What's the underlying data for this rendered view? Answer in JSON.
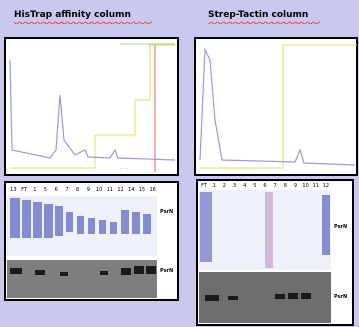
{
  "panels": [
    {
      "title": "HisTrap affinity column",
      "lanes": [
        "13",
        "FT",
        "1",
        "5",
        "6",
        "7",
        "8",
        "9",
        "10",
        "11",
        "12",
        "14",
        "15",
        "16"
      ],
      "band_label_top": "PsrN",
      "band_label_bottom": "PsrN"
    },
    {
      "title": "Strep-Tactin column",
      "lanes": [
        "FT",
        "1",
        "2",
        "3",
        "4",
        "5",
        "6",
        "7",
        "8",
        "9",
        "10",
        "11",
        "12"
      ],
      "band_label_top": "PsrN",
      "band_label_bottom": "PsrN"
    }
  ]
}
